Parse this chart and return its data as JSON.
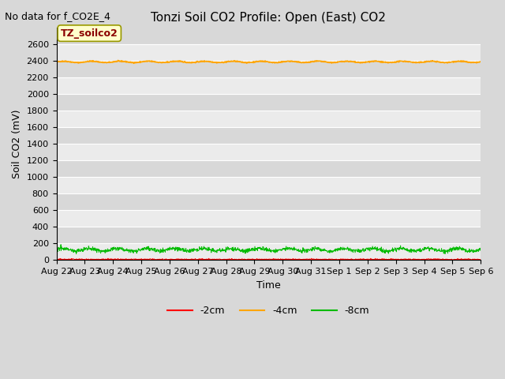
{
  "title": "Tonzi Soil CO2 Profile: Open (East) CO2",
  "no_data_text": "No data for f_CO2E_4",
  "ylabel": "Soil CO2 (mV)",
  "xlabel": "Time",
  "annotation": "TZ_soilco2",
  "ylim": [
    0,
    2800
  ],
  "yticks": [
    0,
    200,
    400,
    600,
    800,
    1000,
    1200,
    1400,
    1600,
    1800,
    2000,
    2200,
    2400,
    2600
  ],
  "date_labels": [
    "Aug 22",
    "Aug 23",
    "Aug 24",
    "Aug 25",
    "Aug 26",
    "Aug 27",
    "Aug 28",
    "Aug 29",
    "Aug 30",
    "Aug 31",
    "Sep 1",
    "Sep 2",
    "Sep 3",
    "Sep 4",
    "Sep 5",
    "Sep 6"
  ],
  "line_2cm_color": "#ff0000",
  "line_4cm_color": "#ffa500",
  "line_8cm_color": "#00bb00",
  "line_4cm_value": 2390,
  "line_8cm_mean": 125,
  "line_8cm_noise": 12,
  "line_2cm_value": 8,
  "line_2cm_noise": 4,
  "bg_light": "#ebebeb",
  "bg_dark": "#d8d8d8",
  "legend_entries": [
    "-2cm",
    "-4cm",
    "-8cm"
  ],
  "title_fontsize": 11,
  "axis_fontsize": 9,
  "tick_fontsize": 8,
  "annot_fontsize": 9,
  "nodata_fontsize": 9
}
